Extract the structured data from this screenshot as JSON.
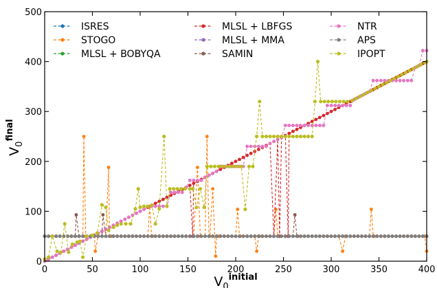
{
  "chart_data": {
    "type": "line",
    "xlabel": "V",
    "xlabel_sub": "0",
    "xlabel_sup": "initial",
    "ylabel": "V",
    "ylabel_sub": "0",
    "ylabel_sup": "final",
    "xlim": [
      0,
      400
    ],
    "ylim": [
      0,
      500
    ],
    "xticks": [
      0,
      50,
      100,
      150,
      200,
      250,
      300,
      350,
      400
    ],
    "yticks": [
      0,
      100,
      200,
      300,
      400,
      500
    ],
    "legend_position": "top-left, 3 columns",
    "series": [
      {
        "name": "ISRES",
        "color": "#1f77b4"
      },
      {
        "name": "STOGO",
        "color": "#ff7f0e"
      },
      {
        "name": "MLSL + BOBYQA",
        "color": "#2ca02c"
      },
      {
        "name": "MLSL + LBFGS",
        "color": "#d62728"
      },
      {
        "name": "MLSL + MMA",
        "color": "#9467bd"
      },
      {
        "name": "SAMIN",
        "color": "#8c564b"
      },
      {
        "name": "NTR",
        "color": "#e377c2"
      },
      {
        "name": "APS",
        "color": "#7f7f7f"
      },
      {
        "name": "IPOPT",
        "color": "#bcbd22"
      }
    ],
    "flat_value": 50,
    "stogo_spikes": [
      {
        "x": 41,
        "y": 250
      },
      {
        "x": 43,
        "y": 50
      },
      {
        "x": 53,
        "y": 20
      },
      {
        "x": 67,
        "y": 188
      },
      {
        "x": 70,
        "y": 50
      },
      {
        "x": 110,
        "y": 110
      },
      {
        "x": 113,
        "y": 50
      },
      {
        "x": 160,
        "y": 188
      },
      {
        "x": 163,
        "y": 50
      },
      {
        "x": 170,
        "y": 250
      },
      {
        "x": 173,
        "y": 50
      },
      {
        "x": 176,
        "y": 145
      },
      {
        "x": 179,
        "y": 10
      },
      {
        "x": 182,
        "y": 50
      },
      {
        "x": 202,
        "y": 104
      },
      {
        "x": 205,
        "y": 50
      },
      {
        "x": 222,
        "y": 20
      },
      {
        "x": 225,
        "y": 50
      },
      {
        "x": 242,
        "y": 104
      },
      {
        "x": 245,
        "y": 50
      },
      {
        "x": 312,
        "y": 20
      },
      {
        "x": 315,
        "y": 50
      },
      {
        "x": 342,
        "y": 104
      },
      {
        "x": 345,
        "y": 50
      },
      {
        "x": 398,
        "y": 50
      },
      {
        "x": 400,
        "y": 20
      }
    ],
    "samin_spikes": [
      {
        "x": 33,
        "y": 93
      },
      {
        "x": 36,
        "y": 50
      },
      {
        "x": 61,
        "y": 93
      },
      {
        "x": 64,
        "y": 50
      },
      {
        "x": 262,
        "y": 93
      },
      {
        "x": 265,
        "y": 50
      }
    ],
    "lbfgs_dips": [
      {
        "x": 155,
        "y": 50
      },
      {
        "x": 240,
        "y": 50
      },
      {
        "x": 246,
        "y": 50
      },
      {
        "x": 255,
        "y": 50
      }
    ],
    "ntr_steps": [
      {
        "x0": 0,
        "x1": 46,
        "y": "diag"
      },
      {
        "x0": 108,
        "x1": 128,
        "y": 110
      },
      {
        "x0": 130,
        "x1": 144,
        "y": 138
      },
      {
        "x0": 150,
        "x1": 166,
        "y": 162
      },
      {
        "x0": 182,
        "x1": 208,
        "y": 190
      },
      {
        "x0": 210,
        "x1": 234,
        "y": 230
      },
      {
        "x0": 250,
        "x1": 292,
        "y": 272
      },
      {
        "x0": 296,
        "x1": 322,
        "y": 312
      },
      {
        "x0": 342,
        "x1": 384,
        "y": 362
      },
      {
        "x0": 394,
        "x1": 400,
        "y": 422
      }
    ],
    "ipopt_points": [
      {
        "x": 0,
        "y": 4
      },
      {
        "x": 4,
        "y": 8
      },
      {
        "x": 8,
        "y": 50
      },
      {
        "x": 13,
        "y": 20
      },
      {
        "x": 17,
        "y": 18
      },
      {
        "x": 21,
        "y": 75
      },
      {
        "x": 25,
        "y": 18
      },
      {
        "x": 29,
        "y": 34
      },
      {
        "x": 34,
        "y": 38
      },
      {
        "x": 37,
        "y": 40
      },
      {
        "x": 40,
        "y": 8
      },
      {
        "x": 44,
        "y": 50
      },
      {
        "x": 50,
        "y": 52
      },
      {
        "x": 55,
        "y": 56
      },
      {
        "x": 60,
        "y": 113
      },
      {
        "x": 64,
        "y": 108
      },
      {
        "x": 67,
        "y": 62
      },
      {
        "x": 72,
        "y": 68
      },
      {
        "x": 76,
        "y": 72
      },
      {
        "x": 80,
        "y": 75
      },
      {
        "x": 85,
        "y": 75
      },
      {
        "x": 90,
        "y": 75
      },
      {
        "x": 95,
        "y": 105
      },
      {
        "x": 98,
        "y": 145
      },
      {
        "x": 100,
        "y": 108
      },
      {
        "x": 104,
        "y": 110
      },
      {
        "x": 108,
        "y": 110
      },
      {
        "x": 112,
        "y": 112
      },
      {
        "x": 116,
        "y": 75
      },
      {
        "x": 120,
        "y": 105
      },
      {
        "x": 125,
        "y": 250
      },
      {
        "x": 128,
        "y": 110
      },
      {
        "x": 131,
        "y": 145
      },
      {
        "x": 135,
        "y": 145
      },
      {
        "x": 139,
        "y": 145
      },
      {
        "x": 143,
        "y": 145
      },
      {
        "x": 147,
        "y": 145
      },
      {
        "x": 152,
        "y": 145
      },
      {
        "x": 155,
        "y": 145
      },
      {
        "x": 159,
        "y": 108
      },
      {
        "x": 163,
        "y": 145
      },
      {
        "x": 167,
        "y": 108
      },
      {
        "x": 170,
        "y": 190
      },
      {
        "x": 174,
        "y": 190
      },
      {
        "x": 178,
        "y": 190
      },
      {
        "x": 182,
        "y": 190
      },
      {
        "x": 186,
        "y": 190
      },
      {
        "x": 190,
        "y": 190
      },
      {
        "x": 194,
        "y": 190
      },
      {
        "x": 198,
        "y": 190
      },
      {
        "x": 202,
        "y": 190
      },
      {
        "x": 206,
        "y": 190
      },
      {
        "x": 210,
        "y": 104
      },
      {
        "x": 214,
        "y": 190
      },
      {
        "x": 218,
        "y": 190
      },
      {
        "x": 222,
        "y": 250
      },
      {
        "x": 225,
        "y": 320
      },
      {
        "x": 228,
        "y": 250
      },
      {
        "x": 232,
        "y": 250
      },
      {
        "x": 236,
        "y": 250
      },
      {
        "x": 240,
        "y": 250
      },
      {
        "x": 244,
        "y": 250
      },
      {
        "x": 248,
        "y": 250
      },
      {
        "x": 252,
        "y": 250
      },
      {
        "x": 256,
        "y": 250
      },
      {
        "x": 260,
        "y": 250
      },
      {
        "x": 264,
        "y": 250
      },
      {
        "x": 268,
        "y": 250
      },
      {
        "x": 272,
        "y": 250
      },
      {
        "x": 276,
        "y": 250
      },
      {
        "x": 280,
        "y": 250
      },
      {
        "x": 283,
        "y": 320
      },
      {
        "x": 286,
        "y": 400
      },
      {
        "x": 289,
        "y": 320
      },
      {
        "x": 293,
        "y": 320
      },
      {
        "x": 297,
        "y": 320
      },
      {
        "x": 301,
        "y": 320
      },
      {
        "x": 305,
        "y": 320
      },
      {
        "x": 309,
        "y": 320
      },
      {
        "x": 313,
        "y": 320
      },
      {
        "x": 317,
        "y": 320
      },
      {
        "x": 322,
        "y": 322
      },
      {
        "x": 400,
        "y": 400
      }
    ]
  }
}
